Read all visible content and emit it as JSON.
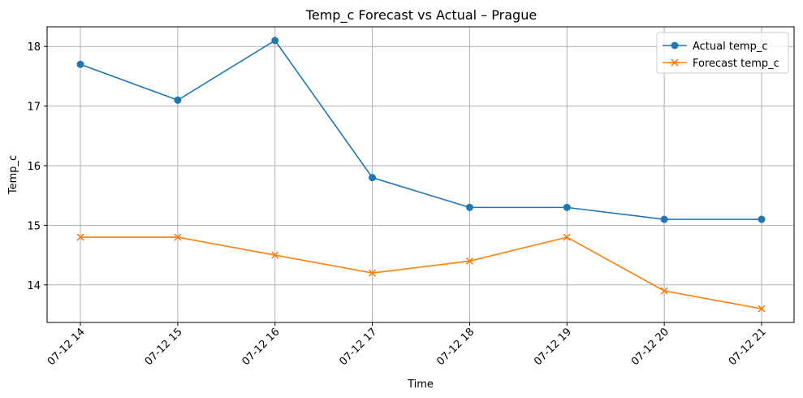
{
  "chart_data": {
    "type": "line",
    "title": "Temp_c Forecast vs Actual – Prague",
    "xlabel": "Time",
    "ylabel": "Temp_c",
    "categories": [
      "07-12 14",
      "07-12 15",
      "07-12 16",
      "07-12 17",
      "07-12 18",
      "07-12 19",
      "07-12 20",
      "07-12 21"
    ],
    "ylim": [
      13.37,
      18.33
    ],
    "yticks": [
      14,
      15,
      16,
      17,
      18
    ],
    "grid": true,
    "legend_position": "top-right",
    "series": [
      {
        "name": "Actual temp_c",
        "marker": "circle",
        "color": "#1f77b4",
        "values": [
          17.7,
          17.1,
          18.1,
          15.8,
          15.3,
          15.3,
          15.1,
          15.1
        ]
      },
      {
        "name": "Forecast temp_c",
        "marker": "x",
        "color": "#ff7f0e",
        "values": [
          14.8,
          14.8,
          14.5,
          14.2,
          14.4,
          14.8,
          13.9,
          13.6
        ]
      }
    ]
  }
}
